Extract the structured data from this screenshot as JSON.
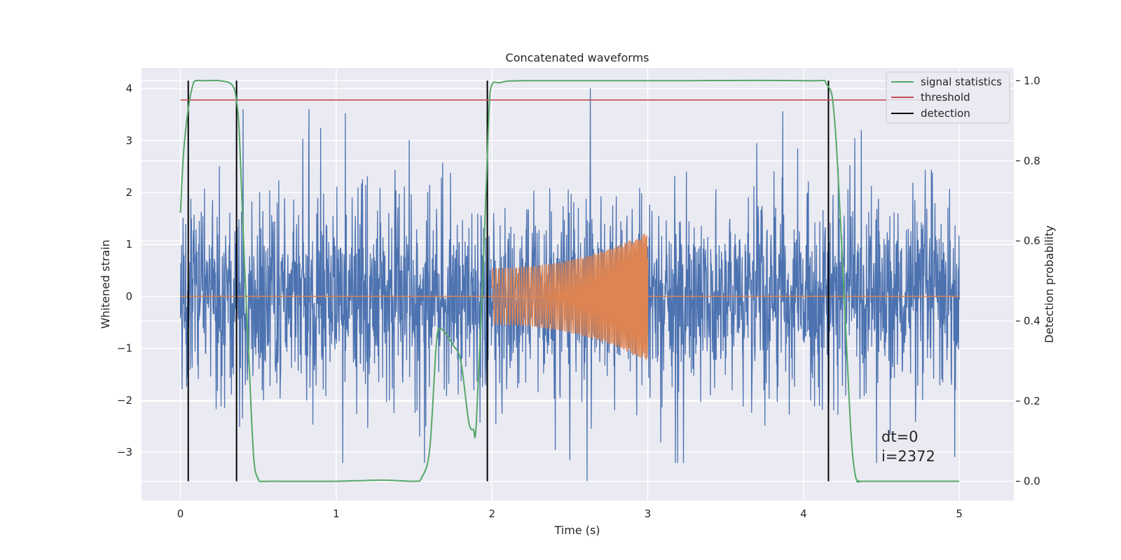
{
  "chart_data": {
    "type": "line",
    "title": "Concatenated waveforms",
    "xlabel": "Time (s)",
    "ylabel": "Whitened strain",
    "y2label": "Detection probability",
    "xlim": [
      -0.25,
      5.35
    ],
    "ylim": [
      -3.93,
      4.4
    ],
    "y2lim": [
      -0.048,
      1.032
    ],
    "xticks": [
      0,
      1,
      2,
      3,
      4,
      5
    ],
    "xtick_labels": [
      "0",
      "1",
      "2",
      "3",
      "4",
      "5"
    ],
    "yticks": [
      -3,
      -2,
      -1,
      0,
      1,
      2,
      3,
      4
    ],
    "ytick_labels": [
      "−3",
      "−2",
      "−1",
      "0",
      "1",
      "2",
      "3",
      "4"
    ],
    "y2ticks": [
      0.0,
      0.2,
      0.4,
      0.6,
      0.8,
      1.0
    ],
    "y2tick_labels": [
      "0.0",
      "0.2",
      "0.4",
      "0.6",
      "0.8",
      "1.0"
    ],
    "grid": true,
    "style": "seaborn-darkgrid",
    "colors": {
      "background": "#eaeaf2",
      "noise": "#4c72b0",
      "injection": "#dd8452",
      "signal_statistics": "#55a868",
      "threshold": "#c44e52",
      "detection": "#000000"
    },
    "noise": {
      "x_range": [
        0,
        5
      ],
      "typical_range": [
        -2.0,
        2.5
      ],
      "peak_max": 4.0,
      "peak_min": -3.55
    },
    "injection": {
      "t_start": 2.0,
      "t_end": 3.0,
      "amplitude_start": 0.55,
      "amplitude_end": 1.25
    },
    "series": [
      {
        "name": "signal statistics",
        "axis": "right",
        "x": [
          0,
          0.02,
          0.05,
          0.08,
          0.1,
          0.15,
          0.25,
          0.33,
          0.36,
          0.38,
          0.41,
          0.44,
          0.47,
          0.5,
          0.53,
          0.6,
          1.0,
          1.3,
          1.5,
          1.55,
          1.6,
          1.64,
          1.66,
          1.7,
          1.75,
          1.8,
          1.85,
          1.88,
          1.9,
          1.95,
          1.98,
          2.0,
          2.05,
          2.2,
          3.0,
          4.0,
          4.15,
          4.2,
          4.25,
          4.3,
          4.33,
          4.36,
          4.4,
          5.0
        ],
        "y": [
          0.67,
          0.82,
          0.93,
          0.99,
          1.0,
          1.0,
          1.0,
          0.99,
          0.95,
          0.85,
          0.55,
          0.3,
          0.06,
          0.005,
          0.0,
          0.0,
          0.0,
          0.003,
          0.0,
          0.01,
          0.08,
          0.33,
          0.38,
          0.37,
          0.34,
          0.3,
          0.15,
          0.13,
          0.15,
          0.6,
          0.92,
          0.99,
          0.995,
          1.0,
          1.0,
          1.0,
          0.99,
          0.9,
          0.55,
          0.15,
          0.02,
          0.0,
          0.0,
          0.0
        ]
      },
      {
        "name": "threshold",
        "axis": "right",
        "x": [
          0,
          5
        ],
        "y": [
          0.952,
          0.952
        ]
      },
      {
        "name": "detection",
        "type": "vlines",
        "x": [
          0.05,
          0.36,
          1.97,
          4.16
        ],
        "y_range": [
          0,
          1
        ]
      }
    ],
    "legend": {
      "position": "top-right",
      "entries": [
        "signal statistics",
        "threshold",
        "detection"
      ]
    },
    "annotation": {
      "dt": "dt=0",
      "i": "i=2372"
    }
  }
}
